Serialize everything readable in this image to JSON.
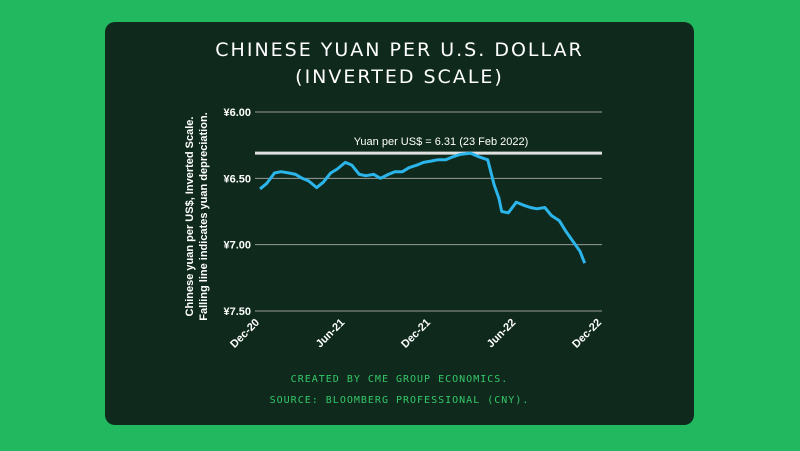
{
  "chart_data": {
    "type": "line",
    "title": "CHINESE YUAN PER U.S. DOLLAR",
    "subtitle": "(INVERTED SCALE)",
    "ylabel_line1": "Chinese yuan per US$, Inverted Scale.",
    "ylabel_line2": "Falling line indicates yuan depreciation.",
    "y_inverted": true,
    "ylim": [
      6.0,
      7.5
    ],
    "y_ticks": [
      6.0,
      6.5,
      7.0,
      7.5
    ],
    "y_tick_labels": [
      "¥6.00",
      "¥6.50",
      "¥7.00",
      "¥7.50"
    ],
    "x_ticks": [
      "2020-12-01",
      "2021-06-01",
      "2021-12-01",
      "2022-06-01",
      "2022-12-01"
    ],
    "x_tick_labels": [
      "Dec-20",
      "Jun-21",
      "Dec-21",
      "Jun-22",
      "Dec-22"
    ],
    "grid": true,
    "line_color": "#2bb5ea",
    "reference_line": {
      "value": 6.31,
      "label": "Yuan per US$ = 6.31 (23 Feb 2022)",
      "color": "#e0e0e0"
    },
    "series": [
      {
        "x": [
          "2020-12-01",
          "2020-12-15",
          "2021-01-01",
          "2021-01-15",
          "2021-02-01",
          "2021-02-15",
          "2021-03-01",
          "2021-03-15",
          "2021-04-01",
          "2021-04-15",
          "2021-05-01",
          "2021-05-15",
          "2021-06-01",
          "2021-06-15",
          "2021-07-01",
          "2021-07-15",
          "2021-08-01",
          "2021-08-15",
          "2021-09-01",
          "2021-09-15",
          "2021-10-01",
          "2021-10-15",
          "2021-11-01",
          "2021-11-15",
          "2021-12-01",
          "2021-12-15",
          "2022-01-01",
          "2022-01-15",
          "2022-02-01",
          "2022-02-23",
          "2022-03-15",
          "2022-04-01",
          "2022-04-15",
          "2022-04-25",
          "2022-05-01",
          "2022-05-15",
          "2022-06-01",
          "2022-06-15",
          "2022-07-01",
          "2022-07-15",
          "2022-08-01",
          "2022-08-15",
          "2022-09-01",
          "2022-09-15",
          "2022-10-01",
          "2022-10-15",
          "2022-10-25"
        ],
        "y": [
          6.58,
          6.54,
          6.46,
          6.45,
          6.46,
          6.47,
          6.5,
          6.52,
          6.57,
          6.53,
          6.46,
          6.43,
          6.38,
          6.4,
          6.47,
          6.48,
          6.47,
          6.5,
          6.47,
          6.45,
          6.45,
          6.42,
          6.4,
          6.38,
          6.37,
          6.36,
          6.36,
          6.34,
          6.32,
          6.31,
          6.34,
          6.36,
          6.55,
          6.65,
          6.75,
          6.76,
          6.68,
          6.7,
          6.72,
          6.73,
          6.72,
          6.78,
          6.82,
          6.9,
          6.98,
          7.05,
          7.14
        ]
      }
    ]
  },
  "footer": {
    "line1": "CREATED BY CME GROUP ECONOMICS.",
    "line2": "SOURCE: BLOOMBERG PROFESSIONAL (CNY)."
  }
}
